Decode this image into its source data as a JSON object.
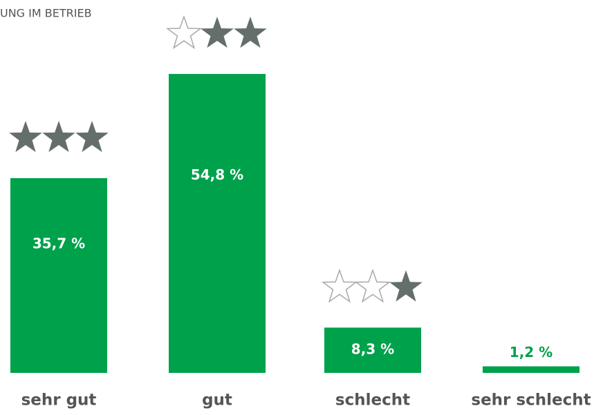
{
  "chart_data": {
    "type": "bar",
    "title": "UNG IM BETRIEB",
    "categories": [
      "sehr gut",
      "gut",
      "schlecht",
      "sehr schlecht"
    ],
    "values": [
      35.7,
      54.8,
      8.3,
      1.2
    ],
    "value_labels": [
      "35,7 %",
      "54,8 %",
      "8,3 %",
      "1,2 %"
    ],
    "stars": [
      3,
      2,
      1,
      0
    ],
    "color": "#00a14b",
    "star_color": "#646f6b",
    "star_empty_color": "#a8a8a8"
  }
}
